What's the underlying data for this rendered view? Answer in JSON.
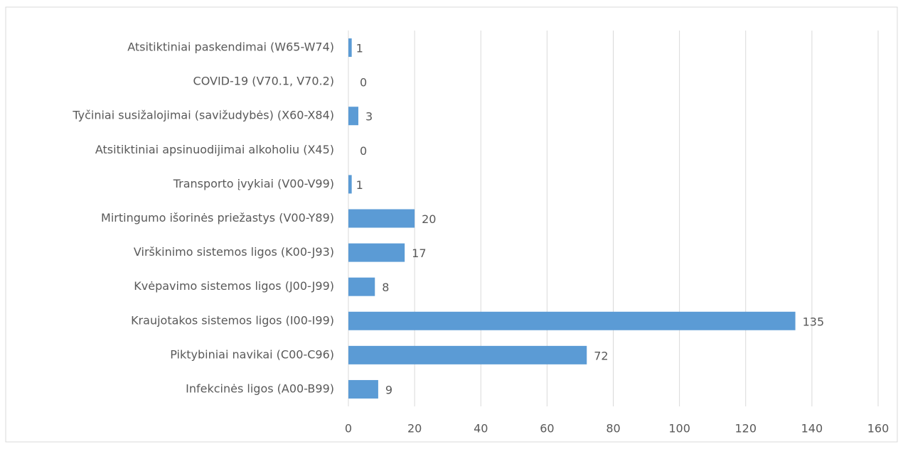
{
  "chart_data": {
    "type": "barh",
    "categories": [
      "Infekcinės ligos (A00-B99)",
      "Piktybiniai navikai (C00-C96)",
      "Kraujotakos sistemos ligos (I00-I99)",
      "Kvėpavimo sistemos ligos (J00-J99)",
      "Virškinimo sistemos ligos (K00-J93)",
      "Mirtingumo išorinės priežastys (V00-Y89)",
      "Transporto įvykiai (V00-V99)",
      "Atsitiktiniai apsinuodijimai alkoholiu (X45)",
      "Tyčiniai susižalojimai (savižudybės) (X60-X84)",
      "COVID-19 (V70.1, V70.2)",
      "Atsitiktiniai paskendimai (W65-W74)"
    ],
    "values": [
      9,
      72,
      135,
      8,
      17,
      20,
      1,
      0,
      3,
      0,
      1
    ],
    "color": "#5b9bd5",
    "xlim": [
      0,
      160
    ],
    "xticks": [
      0,
      20,
      40,
      60,
      80,
      100,
      120,
      140,
      160
    ],
    "grid": true
  }
}
